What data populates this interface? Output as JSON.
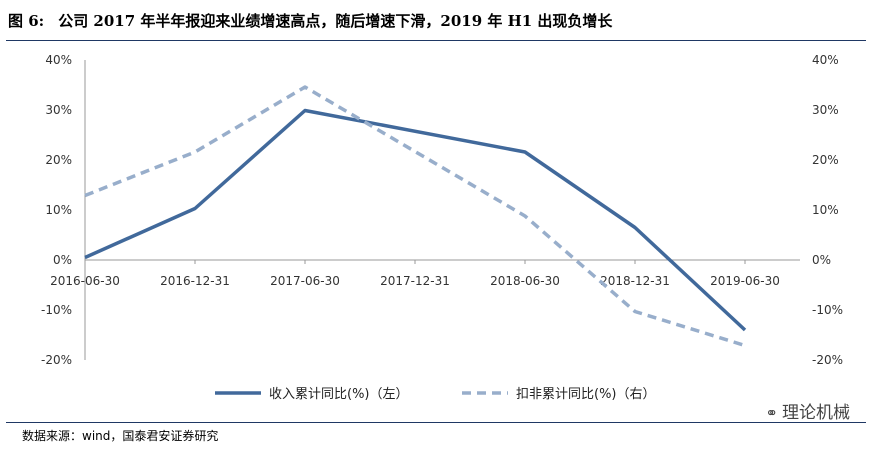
{
  "header": {
    "figure_label": "图 6:",
    "title": "公司 2017 年半年报迎来业绩增速高点，随后增速下滑，2019 年 H1 出现负增长"
  },
  "footer": {
    "source": "数据来源：wind，国泰君安证券研究",
    "watermark": "理论机械",
    "watermark_icon": "wechat-icon"
  },
  "chart_data": {
    "type": "line",
    "categories": [
      "2016-06-30",
      "2016-12-31",
      "2017-06-30",
      "2017-12-31",
      "2018-06-30",
      "2018-12-31",
      "2019-06-30"
    ],
    "y_left_ticks": [
      "40%",
      "30%",
      "20%",
      "10%",
      "0%",
      "-10%",
      "-20%"
    ],
    "y_right_ticks": [
      "40%",
      "30%",
      "20%",
      "10%",
      "0%",
      "-10%",
      "-20%"
    ],
    "ylim": [
      -20,
      40
    ],
    "grid": false,
    "legend_position": "bottom",
    "series": [
      {
        "name": "收入累计同比(%)（左）",
        "axis": "left",
        "style": "solid",
        "color": "#41699b",
        "values": [
          0.5,
          10.3,
          29.9,
          null,
          21.6,
          6.5,
          -14.0
        ]
      },
      {
        "name": "扣非累计同比(%)（右）",
        "axis": "right",
        "style": "dashed",
        "color": "#98aecb",
        "values": [
          12.9,
          21.6,
          34.6,
          null,
          8.8,
          -10.3,
          -17.1
        ]
      }
    ]
  }
}
